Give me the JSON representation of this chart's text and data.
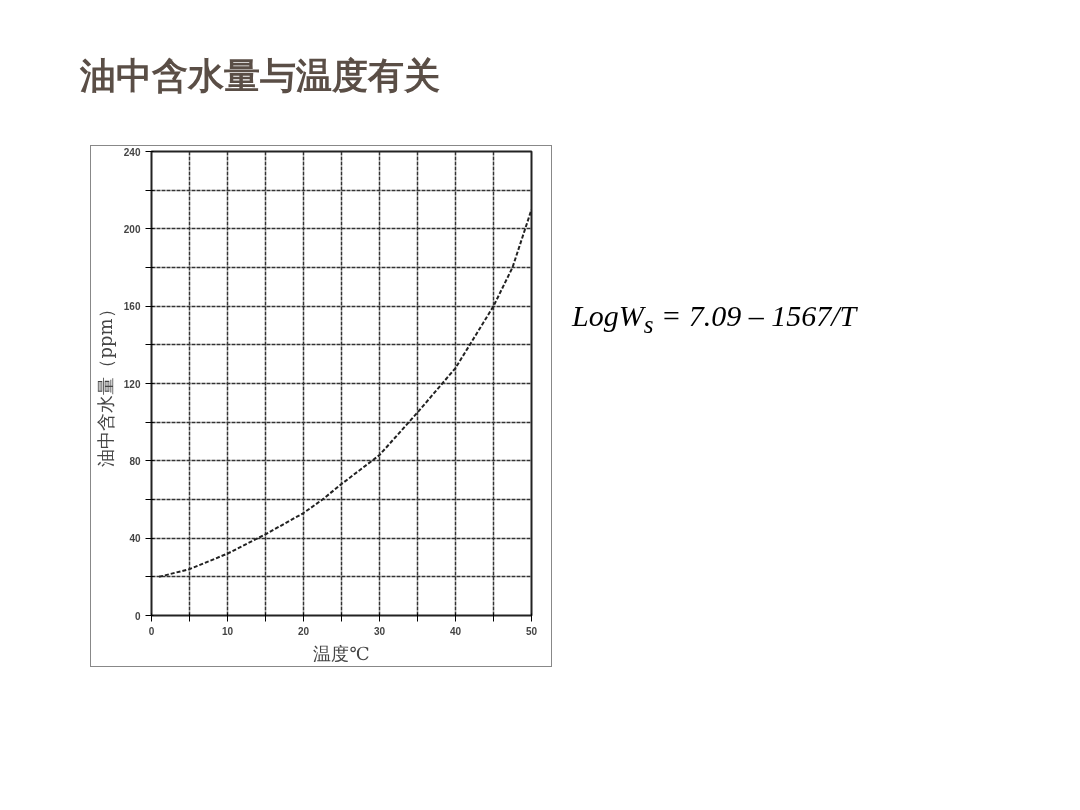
{
  "chart_data": {
    "type": "line",
    "title": "油中含水量与温度有关",
    "xlabel": "温度℃",
    "ylabel": "油中含水量（ppm）",
    "annotations": [
      "LogW$_{s}$ = 7.09 – 1567/T"
    ],
    "x": [
      1,
      5,
      10,
      15,
      20,
      22.5,
      25,
      30,
      35,
      40,
      45,
      47.5,
      50
    ],
    "series": [
      {
        "color": "#222222",
        "values": [
          20,
          24,
          32,
          42,
          53,
          60,
          68,
          83,
          105,
          128,
          160,
          180,
          210
        ]
      }
    ],
    "xlim": [
      0,
      50
    ],
    "ylim": [
      0,
      240
    ],
    "xticks": [
      0,
      {
        "value": 5,
        "label": null
      },
      10,
      {
        "value": 15,
        "label": null
      },
      20,
      {
        "value": 25,
        "label": null
      },
      30,
      {
        "value": 35,
        "label": null
      },
      40,
      {
        "value": 45,
        "label": null
      },
      50
    ],
    "yticks": [
      0,
      {
        "value": 20,
        "label": null
      },
      40,
      {
        "value": 60,
        "label": null
      },
      80,
      {
        "value": 100,
        "label": null
      },
      120,
      {
        "value": 140,
        "label": null
      },
      160,
      {
        "value": 180,
        "label": null
      },
      200,
      {
        "value": 220,
        "label": null
      },
      240
    ],
    "grid": true,
    "marker": "none",
    "line_style": "dashed"
  }
}
